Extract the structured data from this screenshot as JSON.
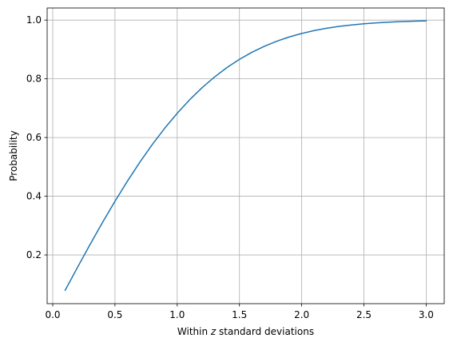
{
  "chart_data": {
    "type": "line",
    "title": "",
    "xlabel": "Within z standard deviations",
    "xlabel_parts": [
      "Within ",
      "z",
      " standard deviations"
    ],
    "ylabel": "Probability",
    "xlim": [
      -0.045,
      3.145
    ],
    "ylim": [
      0.0341,
      1.0413
    ],
    "xticks": [
      0.0,
      0.5,
      1.0,
      1.5,
      2.0,
      2.5,
      3.0
    ],
    "xtick_labels": [
      "0.0",
      "0.5",
      "1.0",
      "1.5",
      "2.0",
      "2.5",
      "3.0"
    ],
    "yticks": [
      0.2,
      0.4,
      0.6,
      0.8,
      1.0
    ],
    "ytick_labels": [
      "0.2",
      "0.4",
      "0.6",
      "0.8",
      "1.0"
    ],
    "grid": true,
    "color": "#1f77b4",
    "series": [
      {
        "x": [
          0.1,
          0.2,
          0.3,
          0.4,
          0.5,
          0.6,
          0.7,
          0.8,
          0.9,
          1.0,
          1.1,
          1.2,
          1.3,
          1.4,
          1.5,
          1.6,
          1.7,
          1.8,
          1.9,
          2.0,
          2.1,
          2.2,
          2.3,
          2.4,
          2.5,
          2.6,
          2.7,
          2.8,
          2.9,
          3.0
        ],
        "values": [
          0.0797,
          0.1585,
          0.2358,
          0.3108,
          0.3829,
          0.4515,
          0.5161,
          0.5763,
          0.6319,
          0.6827,
          0.7287,
          0.7699,
          0.8064,
          0.8385,
          0.8664,
          0.8904,
          0.9109,
          0.9281,
          0.9426,
          0.9545,
          0.9643,
          0.9722,
          0.9786,
          0.9836,
          0.9876,
          0.9907,
          0.9931,
          0.9949,
          0.9963,
          0.9973
        ]
      }
    ]
  }
}
